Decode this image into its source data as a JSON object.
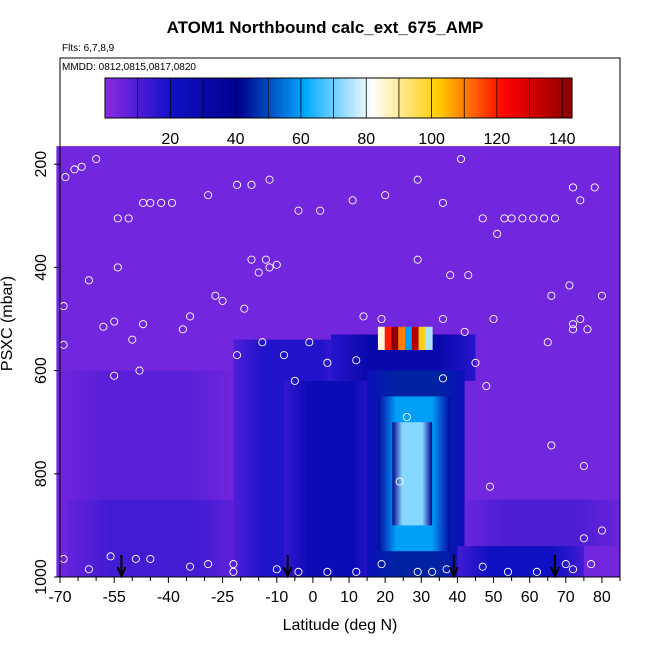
{
  "chart_data": {
    "type": "heatmap",
    "title": "ATOM1 Northbound calc_ext_675_AMP",
    "flights_note": "Flts: 6,7,8,9",
    "dates_note": "MMDD: 0812,0815,0817,0820",
    "xlabel": "Latitude (deg N)",
    "ylabel": "PSXC (mbar)",
    "xlim": [
      -70,
      85
    ],
    "ylim": [
      1000,
      0
    ],
    "x_ticks": [
      -70,
      -55,
      -40,
      -25,
      -10,
      0,
      10,
      20,
      30,
      40,
      50,
      60,
      70,
      80
    ],
    "y_ticks": [
      200,
      400,
      600,
      800,
      1000
    ],
    "colorbar": {
      "range": [
        0,
        143
      ],
      "ticks": [
        20,
        40,
        60,
        80,
        100,
        120,
        140
      ],
      "stops": [
        "#8a2be2",
        "#1010c8",
        "#00008b",
        "#00aaff",
        "#ffffff",
        "#ffcc00",
        "#ff0000",
        "#8b0000"
      ]
    },
    "field_regions": [
      {
        "lat": [
          -71,
          85
        ],
        "p": [
          165,
          1000
        ],
        "value": 4
      },
      {
        "lat": [
          -70,
          -22
        ],
        "p": [
          600,
          1000
        ],
        "value": 8
      },
      {
        "lat": [
          -68,
          -20
        ],
        "p": [
          850,
          1000
        ],
        "value": 12
      },
      {
        "lat": [
          -22,
          10
        ],
        "p": [
          540,
          1000
        ],
        "value": 18
      },
      {
        "lat": [
          -8,
          18
        ],
        "p": [
          620,
          1000
        ],
        "value": 26
      },
      {
        "lat": [
          5,
          45
        ],
        "p": [
          530,
          620
        ],
        "value": 30
      },
      {
        "lat": [
          15,
          42
        ],
        "p": [
          600,
          1000
        ],
        "value": 45
      },
      {
        "lat": [
          18,
          38
        ],
        "p": [
          650,
          950
        ],
        "value": 60
      },
      {
        "lat": [
          22,
          33
        ],
        "p": [
          700,
          900
        ],
        "value": 72
      },
      {
        "lat": [
          40,
          75
        ],
        "p": [
          940,
          1000
        ],
        "value": 22
      },
      {
        "lat": [
          42,
          85
        ],
        "p": [
          850,
          940
        ],
        "value": 10
      }
    ],
    "hotspot": {
      "lat": [
        18,
        33
      ],
      "p": [
        515,
        560
      ],
      "values": [
        85,
        120,
        143,
        110,
        60,
        135,
        100,
        75
      ]
    },
    "sample_points": [
      {
        "lat": -68.5,
        "p": 225
      },
      {
        "lat": -66,
        "p": 210
      },
      {
        "lat": -64,
        "p": 205
      },
      {
        "lat": -60,
        "p": 190
      },
      {
        "lat": -54,
        "p": 305
      },
      {
        "lat": -51,
        "p": 305
      },
      {
        "lat": -47,
        "p": 275
      },
      {
        "lat": -45,
        "p": 275
      },
      {
        "lat": -42,
        "p": 275
      },
      {
        "lat": -39,
        "p": 275
      },
      {
        "lat": -29,
        "p": 260
      },
      {
        "lat": -21,
        "p": 240
      },
      {
        "lat": -17,
        "p": 240
      },
      {
        "lat": -12,
        "p": 230
      },
      {
        "lat": -4,
        "p": 290
      },
      {
        "lat": 2,
        "p": 290
      },
      {
        "lat": 11,
        "p": 270
      },
      {
        "lat": 20,
        "p": 260
      },
      {
        "lat": 29,
        "p": 230
      },
      {
        "lat": 36,
        "p": 275
      },
      {
        "lat": 41,
        "p": 190
      },
      {
        "lat": 47,
        "p": 305
      },
      {
        "lat": 53,
        "p": 305
      },
      {
        "lat": 55,
        "p": 305
      },
      {
        "lat": 58,
        "p": 305
      },
      {
        "lat": 61,
        "p": 305
      },
      {
        "lat": 64,
        "p": 305
      },
      {
        "lat": 67,
        "p": 305
      },
      {
        "lat": 51,
        "p": 335
      },
      {
        "lat": 72,
        "p": 245
      },
      {
        "lat": 74,
        "p": 270
      },
      {
        "lat": 78,
        "p": 245
      },
      {
        "lat": -69,
        "p": 475
      },
      {
        "lat": -62,
        "p": 425
      },
      {
        "lat": -54,
        "p": 400
      },
      {
        "lat": -58,
        "p": 515
      },
      {
        "lat": -55,
        "p": 505
      },
      {
        "lat": -47,
        "p": 510
      },
      {
        "lat": -50,
        "p": 540
      },
      {
        "lat": -34,
        "p": 495
      },
      {
        "lat": -36,
        "p": 520
      },
      {
        "lat": -27,
        "p": 455
      },
      {
        "lat": -25,
        "p": 465
      },
      {
        "lat": -19,
        "p": 480
      },
      {
        "lat": -13,
        "p": 385
      },
      {
        "lat": -17,
        "p": 385
      },
      {
        "lat": -12,
        "p": 400
      },
      {
        "lat": -15,
        "p": 410
      },
      {
        "lat": -10,
        "p": 395
      },
      {
        "lat": -21,
        "p": 570
      },
      {
        "lat": -14,
        "p": 545
      },
      {
        "lat": -8,
        "p": 570
      },
      {
        "lat": -5,
        "p": 620
      },
      {
        "lat": -1,
        "p": 545
      },
      {
        "lat": 4,
        "p": 585
      },
      {
        "lat": 14,
        "p": 495
      },
      {
        "lat": 19,
        "p": 500
      },
      {
        "lat": 12,
        "p": 580
      },
      {
        "lat": 29,
        "p": 385
      },
      {
        "lat": 38,
        "p": 415
      },
      {
        "lat": 43,
        "p": 415
      },
      {
        "lat": 36,
        "p": 500
      },
      {
        "lat": 50,
        "p": 500
      },
      {
        "lat": 42,
        "p": 525
      },
      {
        "lat": 45,
        "p": 585
      },
      {
        "lat": 36,
        "p": 615
      },
      {
        "lat": 48,
        "p": 630
      },
      {
        "lat": 66,
        "p": 455
      },
      {
        "lat": 71,
        "p": 435
      },
      {
        "lat": 72,
        "p": 510
      },
      {
        "lat": 74,
        "p": 500
      },
      {
        "lat": 76,
        "p": 520
      },
      {
        "lat": 72,
        "p": 520
      },
      {
        "lat": 65,
        "p": 545
      },
      {
        "lat": 80,
        "p": 455
      },
      {
        "lat": -69,
        "p": 550
      },
      {
        "lat": -48,
        "p": 600
      },
      {
        "lat": -55,
        "p": 610
      },
      {
        "lat": 26,
        "p": 690
      },
      {
        "lat": 24,
        "p": 815
      },
      {
        "lat": 49,
        "p": 825
      },
      {
        "lat": 66,
        "p": 745
      },
      {
        "lat": 75,
        "p": 785
      },
      {
        "lat": 75,
        "p": 925
      },
      {
        "lat": 80,
        "p": 910
      },
      {
        "lat": -69,
        "p": 965
      },
      {
        "lat": -56,
        "p": 960
      },
      {
        "lat": -49,
        "p": 965
      },
      {
        "lat": -45,
        "p": 965
      },
      {
        "lat": -62,
        "p": 985
      },
      {
        "lat": -34,
        "p": 980
      },
      {
        "lat": -22,
        "p": 975
      },
      {
        "lat": -22,
        "p": 990
      },
      {
        "lat": -29,
        "p": 975
      },
      {
        "lat": -10,
        "p": 985
      },
      {
        "lat": -4,
        "p": 990
      },
      {
        "lat": 4,
        "p": 990
      },
      {
        "lat": 12,
        "p": 990
      },
      {
        "lat": 19,
        "p": 975
      },
      {
        "lat": 29,
        "p": 990
      },
      {
        "lat": 33,
        "p": 990
      },
      {
        "lat": 37,
        "p": 985
      },
      {
        "lat": 47,
        "p": 980
      },
      {
        "lat": 54,
        "p": 990
      },
      {
        "lat": 62,
        "p": 990
      },
      {
        "lat": 70,
        "p": 975
      },
      {
        "lat": 72,
        "p": 985
      },
      {
        "lat": 77,
        "p": 975
      }
    ],
    "arrows_lat": [
      -53,
      -7,
      39,
      67
    ]
  }
}
